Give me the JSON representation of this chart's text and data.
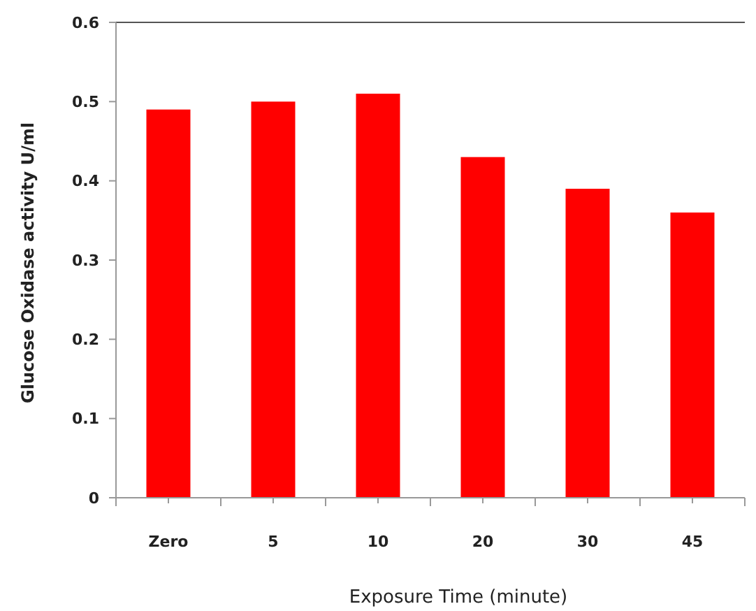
{
  "chart_data": {
    "type": "bar",
    "xlabel": "Exposure Time (minute)",
    "ylabel": "Glucose Oxidase activity U/ml",
    "categories": [
      "Zero",
      "5",
      "10",
      "20",
      "30",
      "45"
    ],
    "values": [
      0.49,
      0.5,
      0.51,
      0.43,
      0.39,
      0.36
    ],
    "color": "#ff0000",
    "ylim": [
      0,
      0.6
    ],
    "yticks": [
      0,
      0.1,
      0.2,
      0.3,
      0.4,
      0.5,
      0.6
    ],
    "grid": false
  }
}
